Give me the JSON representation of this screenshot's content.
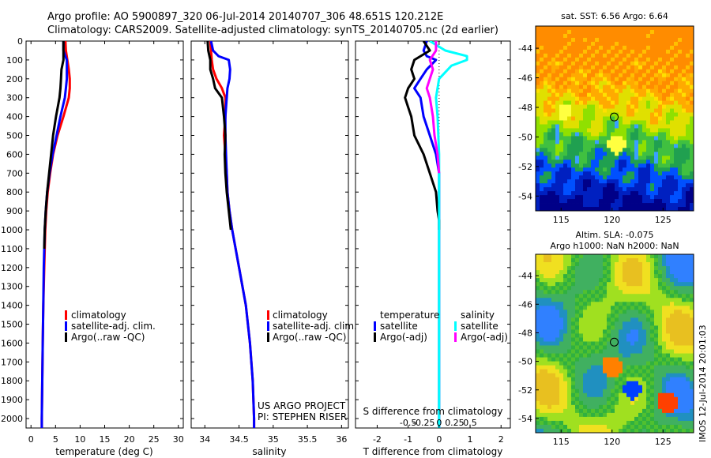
{
  "header": {
    "line1": "Argo profile: AO 5900897_320 06-Jul-2014 20140707_306 48.651S 120.212E",
    "line2": "Climatology: CARS2009. Satellite-adjusted climatology: synTS_20140705.nc (2d earlier)"
  },
  "footer": {
    "project": "US ARGO PROJECT",
    "pi": "PI: STEPHEN RISER",
    "side_stamp": "IMOS 12-Jul-2014 20:01:03"
  },
  "colors": {
    "climatology": "#ff0000",
    "satellite": "#0000ff",
    "argo": "#000000",
    "salinity_satellite": "#00ffff",
    "salinity_argo": "#ff00ff"
  },
  "chart_data": [
    {
      "type": "line",
      "id": "temperature-profile",
      "xlabel": "temperature (deg C)",
      "ylim": [
        2050,
        0
      ],
      "xlim": [
        -1,
        31
      ],
      "xticks": [
        0,
        5,
        10,
        15,
        20,
        25,
        30
      ],
      "yticks": [
        0,
        100,
        200,
        300,
        400,
        500,
        600,
        700,
        800,
        900,
        1000,
        1100,
        1200,
        1300,
        1400,
        1500,
        1600,
        1700,
        1800,
        1900,
        2000
      ],
      "legend": [
        "climatology",
        "satellite-adj. clim.",
        "Argo(..raw -QC)"
      ],
      "series": [
        {
          "name": "climatology",
          "color": "#ff0000",
          "depth": [
            0,
            50,
            100,
            150,
            200,
            250,
            300,
            400,
            500,
            600,
            700,
            800,
            900,
            1000,
            1200,
            1400,
            1600,
            1800,
            2000,
            2050
          ],
          "values": [
            7.0,
            7.1,
            7.4,
            7.7,
            7.9,
            7.9,
            7.7,
            6.6,
            5.4,
            4.5,
            3.9,
            3.4,
            3.1,
            2.9,
            2.7,
            2.5,
            2.4,
            2.3,
            2.2,
            2.2
          ]
        },
        {
          "name": "satellite-adj. clim.",
          "color": "#0000ff",
          "depth": [
            0,
            50,
            80,
            100,
            150,
            200,
            250,
            300,
            400,
            500,
            600,
            700,
            800,
            900,
            1000,
            1200,
            1400,
            1600,
            1800,
            2000,
            2050
          ],
          "values": [
            6.6,
            6.6,
            7.0,
            7.3,
            7.3,
            7.3,
            7.1,
            6.9,
            6.0,
            5.2,
            4.4,
            3.8,
            3.3,
            3.0,
            2.8,
            2.6,
            2.5,
            2.4,
            2.3,
            2.2,
            2.2
          ]
        },
        {
          "name": "Argo(..raw -QC)",
          "color": "#000000",
          "depth": [
            0,
            50,
            100,
            150,
            200,
            250,
            300,
            400,
            500,
            600,
            700,
            800,
            900,
            1000,
            1100
          ],
          "values": [
            6.6,
            6.6,
            6.6,
            6.2,
            6.1,
            6.0,
            5.8,
            5.1,
            4.5,
            4.1,
            3.7,
            3.3,
            3.0,
            2.8,
            2.7
          ]
        }
      ]
    },
    {
      "type": "line",
      "id": "salinity-profile",
      "xlabel": "salinity",
      "ylim": [
        2050,
        0
      ],
      "xlim": [
        33.8,
        36.1
      ],
      "xticks": [
        34,
        34.5,
        35,
        35.5,
        36
      ],
      "legend": [
        "climatology",
        "satellite-adj. clim.",
        "Argo(..raw -QC)"
      ],
      "series": [
        {
          "name": "climatology",
          "color": "#ff0000",
          "depth": [
            0,
            50,
            100,
            150,
            200,
            250,
            300,
            400,
            500,
            600,
            700,
            800,
            900,
            1000,
            1200,
            1400,
            1600,
            1800,
            2000,
            2050
          ],
          "values": [
            34.08,
            34.09,
            34.1,
            34.12,
            34.17,
            34.25,
            34.3,
            34.3,
            34.28,
            34.3,
            34.32,
            34.33,
            34.36,
            34.4,
            34.5,
            34.6,
            34.66,
            34.7,
            34.72,
            34.72
          ]
        },
        {
          "name": "satellite-adj. clim.",
          "color": "#0000ff",
          "depth": [
            0,
            50,
            80,
            100,
            150,
            200,
            250,
            300,
            400,
            500,
            600,
            700,
            800,
            900,
            1000,
            1200,
            1400,
            1600,
            1800,
            2000,
            2050
          ],
          "values": [
            34.09,
            34.12,
            34.2,
            34.35,
            34.37,
            34.36,
            34.33,
            34.32,
            34.3,
            34.3,
            34.31,
            34.32,
            34.33,
            34.36,
            34.4,
            34.5,
            34.6,
            34.66,
            34.7,
            34.72,
            34.72
          ]
        },
        {
          "name": "Argo(..raw -QC)",
          "color": "#000000",
          "depth": [
            0,
            50,
            100,
            150,
            200,
            250,
            300,
            400,
            500,
            600,
            700,
            800,
            900,
            1000
          ],
          "values": [
            34.04,
            34.05,
            34.08,
            34.08,
            34.12,
            34.15,
            34.25,
            34.28,
            34.3,
            34.29,
            34.3,
            34.32,
            34.35,
            34.38
          ]
        }
      ]
    },
    {
      "type": "line",
      "id": "difference-profile",
      "xlabel": "T difference from climatology",
      "s_axis_label": "S difference from climatology",
      "ylim": [
        2050,
        0
      ],
      "xlim": [
        -2.7,
        2.3
      ],
      "xticks": [
        -2,
        -1,
        0,
        1,
        2
      ],
      "s_ticks": [
        -0.5,
        -0.25,
        0,
        0.25,
        0.5
      ],
      "s_tick_labels": [
        "-0.5",
        "-0.25",
        "0",
        "0.25",
        "0.5"
      ],
      "legend_headers": [
        "temperature",
        "salinity"
      ],
      "legend": [
        "satellite",
        "Argo(-adj)",
        "satellite",
        "Argo(-adj)"
      ],
      "series": [
        {
          "name": "satellite",
          "color": "#0000ff",
          "depth": [
            0,
            50,
            80,
            100,
            150,
            200,
            250,
            300,
            400,
            500,
            600,
            700,
            800,
            900,
            1000,
            1100,
            1500,
            2050
          ],
          "values": [
            -0.4,
            -0.5,
            -0.4,
            -0.1,
            -0.4,
            -0.6,
            -0.8,
            -0.6,
            -0.5,
            -0.3,
            -0.1,
            0.0,
            0.0,
            0.0,
            0.0,
            0.0,
            0.0,
            0.0
          ]
        },
        {
          "name": "Argo(-adj)",
          "color": "#000000",
          "depth": [
            0,
            50,
            100,
            150,
            200,
            250,
            300,
            350,
            400,
            500,
            600,
            700,
            800,
            900,
            950,
            1000
          ],
          "values": [
            -0.5,
            -0.3,
            -0.8,
            -0.9,
            -0.8,
            -1.0,
            -1.1,
            -1.0,
            -0.9,
            -0.8,
            -0.5,
            -0.3,
            -0.1,
            -0.05,
            0.0,
            0.0
          ]
        },
        {
          "name": "satellite",
          "color": "#00ffff",
          "depth": [
            0,
            50,
            80,
            100,
            130,
            200,
            300,
            400,
            600,
            800,
            1000,
            1200,
            1600,
            2050
          ],
          "values": [
            -0.3,
            0.2,
            0.9,
            0.9,
            0.4,
            0.0,
            -0.1,
            -0.05,
            0.0,
            0.0,
            0.0,
            0.0,
            0.0,
            0.0
          ]
        },
        {
          "name": "Argo(-adj)",
          "color": "#ff00ff",
          "depth": [
            0,
            50,
            100,
            150,
            200,
            250,
            300,
            400,
            500,
            600,
            700
          ],
          "values": [
            -0.1,
            -0.1,
            -0.3,
            -0.2,
            -0.3,
            -0.4,
            -0.3,
            -0.2,
            -0.15,
            -0.05,
            0.0
          ]
        }
      ]
    },
    {
      "type": "heatmap",
      "id": "sst-map",
      "title": "sat. SST: 6.56 Argo: 6.64",
      "xlim": [
        112.5,
        128
      ],
      "ylim": [
        -55,
        -42.5
      ],
      "xticks": [
        115,
        120,
        125
      ],
      "yticks": [
        -44,
        -46,
        -48,
        -50,
        -52,
        -54
      ],
      "float_position": [
        120.212,
        -48.651
      ],
      "tile_colors": [
        "#ff8c00",
        "#ff8c00",
        "#ffc000",
        "#ffe000",
        "#ffaa00",
        "#e0e000",
        "#90e000",
        "#40c040",
        "#20a050",
        "#3aa0ff",
        "#0050ff",
        "#0020c0",
        "#000088",
        "#ffff40"
      ]
    },
    {
      "type": "heatmap",
      "id": "sla-map",
      "title": "Altim. SLA: -0.075",
      "subtitle": "Argo h1000: NaN h2000: NaN",
      "xlim": [
        112.5,
        128
      ],
      "ylim": [
        -55,
        -42.5
      ],
      "xticks": [
        115,
        120,
        125
      ],
      "yticks": [
        -44,
        -46,
        -48,
        -50,
        -52,
        -54
      ],
      "float_position": [
        120.212,
        -48.651
      ],
      "tile_colors": [
        "#30b040",
        "#50c030",
        "#80d030",
        "#40b060",
        "#30a070",
        "#a0e020",
        "#f0e020",
        "#e8c020",
        "#3080ff",
        "#ff8000",
        "#ff4000",
        "#0040ff",
        "#2090c0",
        "#60c850"
      ]
    }
  ]
}
